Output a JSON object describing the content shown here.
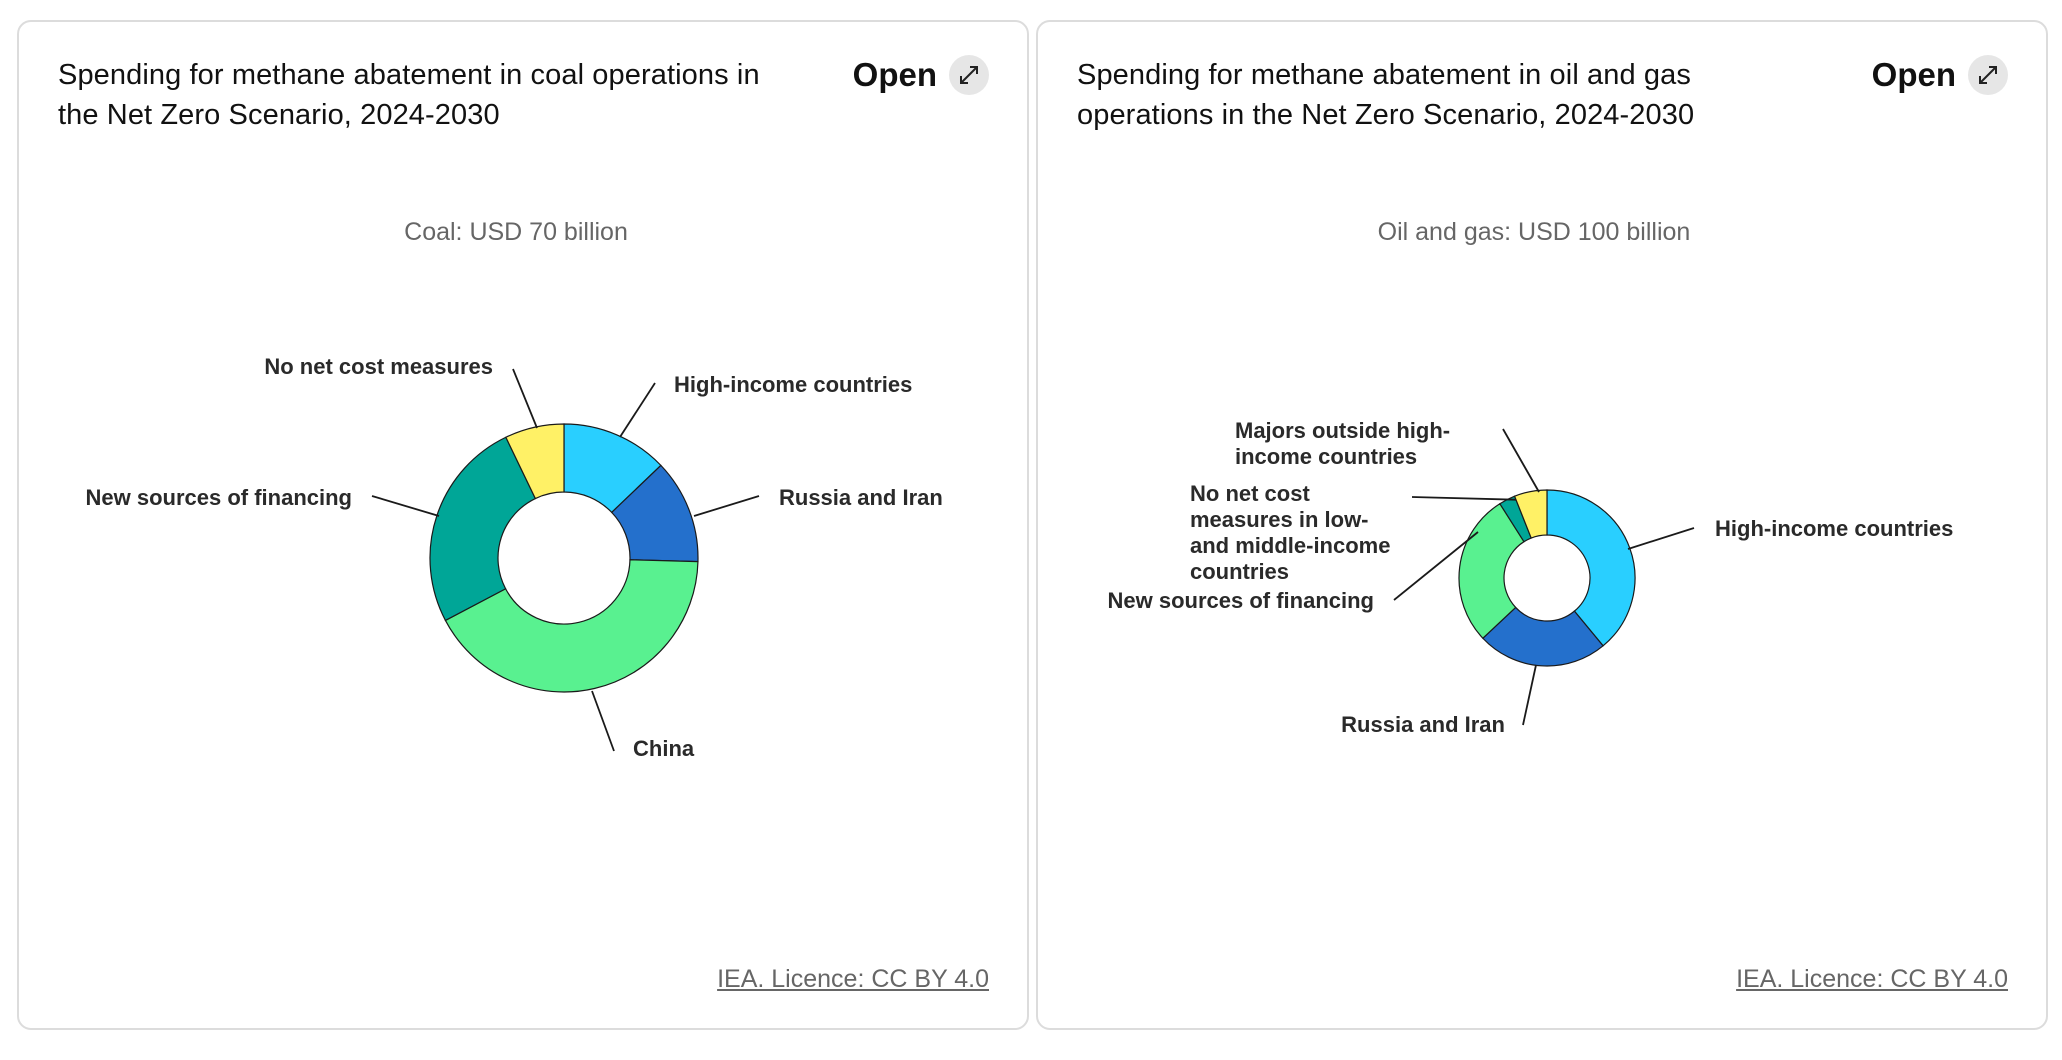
{
  "cards": [
    {
      "title": "Spending for methane abatement in coal operations in the Net Zero Scenario, 2024-2030",
      "open_label": "Open",
      "licence": "IEA. Licence: CC BY 4.0"
    },
    {
      "title": "Spending for methane abatement in oil and gas operations in the Net Zero Scenario, 2024-2030",
      "open_label": "Open",
      "licence": "IEA. Licence: CC BY 4.0"
    }
  ],
  "chart_data": [
    {
      "type": "pie",
      "subtitle": "Coal: USD 70 billion",
      "total": 70,
      "unit": "USD billion",
      "slices": [
        {
          "label": "High-income countries",
          "value": 9.0,
          "color": "#29CFFF"
        },
        {
          "label": "Russia and Iran",
          "value": 8.8,
          "color": "#2470CC"
        },
        {
          "label": "China",
          "value": 29.3,
          "color": "#59F190"
        },
        {
          "label": "New sources of financing",
          "value": 17.9,
          "color": "#00A697"
        },
        {
          "label": "No net cost measures",
          "value": 5.0,
          "color": "#FFF166"
        }
      ]
    },
    {
      "type": "pie",
      "subtitle": "Oil and gas: USD 100 billion",
      "total": 100,
      "unit": "USD billion",
      "slices": [
        {
          "label": "High-income countries",
          "value": 39,
          "color": "#29CFFF"
        },
        {
          "label": "Russia and Iran",
          "value": 24,
          "color": "#2470CC"
        },
        {
          "label": "New sources of financing",
          "value": 28,
          "color": "#59F190"
        },
        {
          "label": "No net cost measures in low- and middle-income countries",
          "label_lines": [
            "No net cost",
            "measures in low-",
            "and middle-income",
            "countries"
          ],
          "value": 3,
          "color": "#00A697"
        },
        {
          "label": "Majors outside high-income countries",
          "label_lines": [
            "Majors outside high-",
            "income countries"
          ],
          "value": 6,
          "color": "#FFF166"
        }
      ]
    }
  ]
}
